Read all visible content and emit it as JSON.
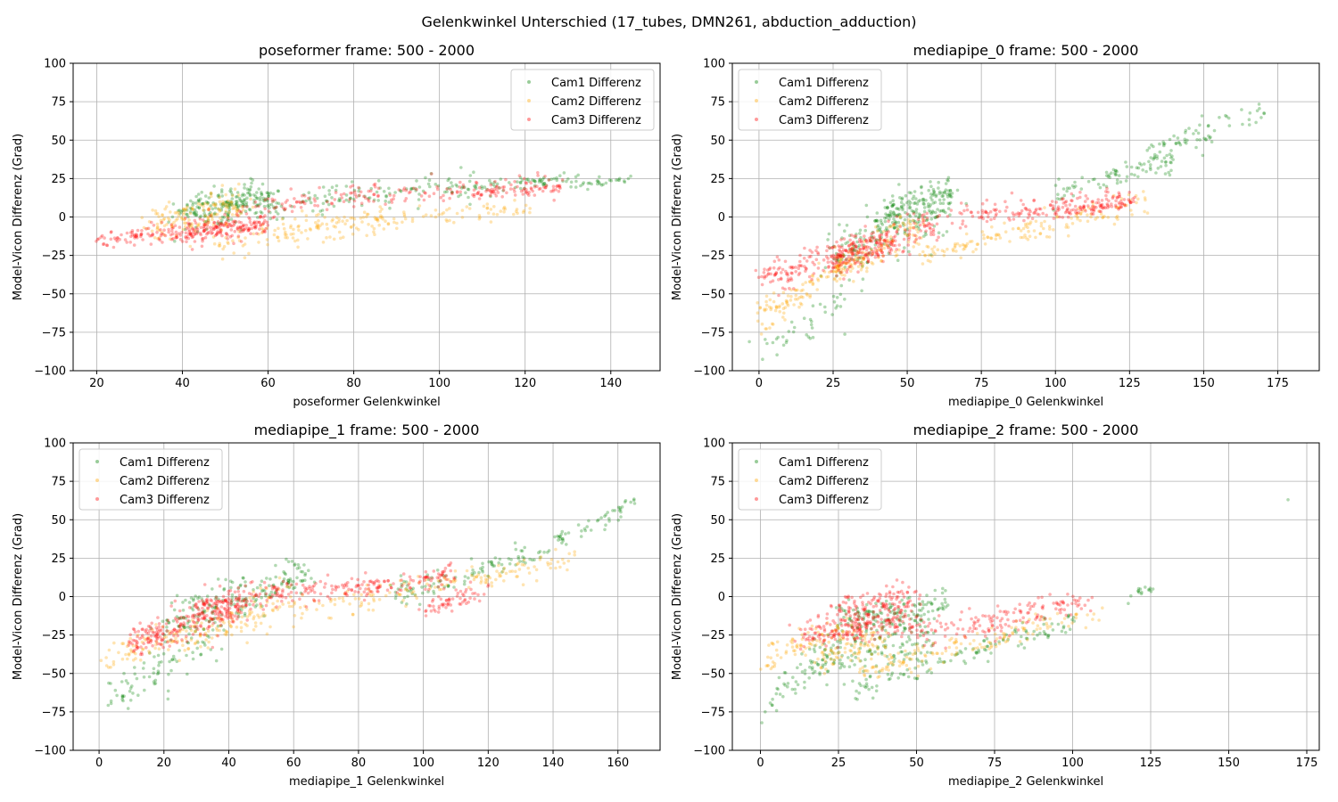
{
  "figure_title": "Gelenkwinkel Unterschied (17_tubes, DMN261, abduction_adduction)",
  "colors": {
    "cam1": "#008000",
    "cam2": "#ffa500",
    "cam3": "#ff0000"
  },
  "chart_data": [
    {
      "type": "scatter",
      "title": "poseformer frame: 500 - 2000",
      "xlabel": "poseformer Gelenkwinkel",
      "ylabel": "Model-Vicon Differenz (Grad)",
      "xlim": [
        14.5,
        151.5
      ],
      "ylim": [
        -100,
        100
      ],
      "xticks": [
        20,
        40,
        60,
        80,
        100,
        120,
        140
      ],
      "yticks": [
        -100,
        -75,
        -50,
        -25,
        0,
        25,
        50,
        75,
        100
      ],
      "grid": true,
      "legend_position": "top-right",
      "series": [
        {
          "name": "Cam1 Differenz",
          "color": "#008000",
          "segments": [
            {
              "x": [
                38,
                60
              ],
              "y": [
                0,
                15
              ],
              "spread": 6,
              "n": 180
            },
            {
              "x": [
                45,
                110
              ],
              "y": [
                5,
                20
              ],
              "spread": 5,
              "n": 160
            },
            {
              "x": [
                105,
                132
              ],
              "y": [
                18,
                26
              ],
              "spread": 2,
              "n": 60
            },
            {
              "x": [
                130,
                145
              ],
              "y": [
                20,
                25
              ],
              "spread": 1.5,
              "n": 30
            }
          ]
        },
        {
          "name": "Cam2 Differenz",
          "color": "#ffa500",
          "segments": [
            {
              "x": [
                32,
                55
              ],
              "y": [
                -5,
                8
              ],
              "spread": 6,
              "n": 150
            },
            {
              "x": [
                48,
                90
              ],
              "y": [
                -18,
                -2
              ],
              "spread": 4,
              "n": 100
            },
            {
              "x": [
                60,
                122
              ],
              "y": [
                -5,
                5
              ],
              "spread": 3,
              "n": 100
            }
          ]
        },
        {
          "name": "Cam3 Differenz",
          "color": "#ff0000",
          "segments": [
            {
              "x": [
                21,
                60
              ],
              "y": [
                -14,
                -6
              ],
              "spread": 3,
              "n": 180
            },
            {
              "x": [
                40,
                60
              ],
              "y": [
                -12,
                0
              ],
              "spread": 5,
              "n": 100
            },
            {
              "x": [
                55,
                128
              ],
              "y": [
                8,
                22
              ],
              "spread": 4,
              "n": 160
            },
            {
              "x": [
                108,
                128
              ],
              "y": [
                15,
                20
              ],
              "spread": 2,
              "n": 50
            }
          ]
        }
      ]
    },
    {
      "type": "scatter",
      "title": "mediapipe_0 frame: 500 - 2000",
      "xlabel": "mediapipe_0 Gelenkwinkel",
      "ylabel": "Model-Vicon Differenz (Grad)",
      "xlim": [
        -9,
        189
      ],
      "ylim": [
        -100,
        100
      ],
      "xticks": [
        0,
        25,
        50,
        75,
        100,
        125,
        150,
        175
      ],
      "yticks": [
        -100,
        -75,
        -50,
        -25,
        0,
        25,
        50,
        75,
        100
      ],
      "grid": true,
      "legend_position": "top-left",
      "series": [
        {
          "name": "Cam1 Differenz",
          "color": "#008000",
          "segments": [
            {
              "x": [
                0,
                30
              ],
              "y": [
                -88,
                -55
              ],
              "spread": 8,
              "n": 40
            },
            {
              "x": [
                25,
                65
              ],
              "y": [
                -25,
                10
              ],
              "spread": 9,
              "n": 200
            },
            {
              "x": [
                40,
                65
              ],
              "y": [
                0,
                18
              ],
              "spread": 5,
              "n": 100
            },
            {
              "x": [
                100,
                140
              ],
              "y": [
                15,
                38
              ],
              "spread": 4,
              "n": 80
            },
            {
              "x": [
                130,
                170
              ],
              "y": [
                40,
                68
              ],
              "spread": 4,
              "n": 70
            }
          ]
        },
        {
          "name": "Cam2 Differenz",
          "color": "#ffa500",
          "segments": [
            {
              "x": [
                0,
                35
              ],
              "y": [
                -65,
                -25
              ],
              "spread": 5,
              "n": 120
            },
            {
              "x": [
                25,
                55
              ],
              "y": [
                -35,
                -5
              ],
              "spread": 6,
              "n": 120
            },
            {
              "x": [
                55,
                130
              ],
              "y": [
                -25,
                10
              ],
              "spread": 4,
              "n": 150
            }
          ]
        },
        {
          "name": "Cam3 Differenz",
          "color": "#ff0000",
          "segments": [
            {
              "x": [
                0,
                45
              ],
              "y": [
                -40,
                -15
              ],
              "spread": 5,
              "n": 200
            },
            {
              "x": [
                25,
                60
              ],
              "y": [
                -28,
                -5
              ],
              "spread": 6,
              "n": 150
            },
            {
              "x": [
                65,
                125
              ],
              "y": [
                0,
                12
              ],
              "spread": 4,
              "n": 150
            },
            {
              "x": [
                100,
                127
              ],
              "y": [
                2,
                10
              ],
              "spread": 2,
              "n": 60
            }
          ]
        }
      ]
    },
    {
      "type": "scatter",
      "title": "mediapipe_1 frame: 500 - 2000",
      "xlabel": "mediapipe_1 Gelenkwinkel",
      "ylabel": "Model-Vicon Differenz (Grad)",
      "xlim": [
        -8,
        173
      ],
      "ylim": [
        -100,
        100
      ],
      "xticks": [
        0,
        20,
        40,
        60,
        80,
        100,
        120,
        140,
        160
      ],
      "yticks": [
        -100,
        -75,
        -50,
        -25,
        0,
        25,
        50,
        75,
        100
      ],
      "grid": true,
      "legend_position": "top-left",
      "series": [
        {
          "name": "Cam1 Differenz",
          "color": "#008000",
          "segments": [
            {
              "x": [
                4,
                35
              ],
              "y": [
                -66,
                -30
              ],
              "spread": 8,
              "n": 80
            },
            {
              "x": [
                20,
                65
              ],
              "y": [
                -20,
                15
              ],
              "spread": 8,
              "n": 200
            },
            {
              "x": [
                90,
                140
              ],
              "y": [
                0,
                30
              ],
              "spread": 4,
              "n": 100
            },
            {
              "x": [
                140,
                165
              ],
              "y": [
                35,
                60
              ],
              "spread": 3,
              "n": 50
            }
          ]
        },
        {
          "name": "Cam2 Differenz",
          "color": "#ffa500",
          "segments": [
            {
              "x": [
                1,
                25
              ],
              "y": [
                -40,
                -25
              ],
              "spread": 4,
              "n": 60
            },
            {
              "x": [
                25,
                60
              ],
              "y": [
                -30,
                0
              ],
              "spread": 7,
              "n": 120
            },
            {
              "x": [
                60,
                148
              ],
              "y": [
                -10,
                25
              ],
              "spread": 4,
              "n": 150
            }
          ]
        },
        {
          "name": "Cam3 Differenz",
          "color": "#ff0000",
          "segments": [
            {
              "x": [
                10,
                45
              ],
              "y": [
                -30,
                -5
              ],
              "spread": 6,
              "n": 250
            },
            {
              "x": [
                30,
                60
              ],
              "y": [
                -10,
                5
              ],
              "spread": 4,
              "n": 100
            },
            {
              "x": [
                60,
                110
              ],
              "y": [
                0,
                15
              ],
              "spread": 4,
              "n": 150
            },
            {
              "x": [
                100,
                120
              ],
              "y": [
                -10,
                5
              ],
              "spread": 3,
              "n": 60
            }
          ]
        }
      ]
    },
    {
      "type": "scatter",
      "title": "mediapipe_2 frame: 500 - 2000",
      "xlabel": "mediapipe_2 Gelenkwinkel",
      "ylabel": "Model-Vicon Differenz (Grad)",
      "xlim": [
        -9,
        179
      ],
      "ylim": [
        -100,
        100
      ],
      "xticks": [
        0,
        25,
        50,
        75,
        100,
        125,
        150,
        175
      ],
      "yticks": [
        -100,
        -75,
        -50,
        -25,
        0,
        25,
        50,
        75,
        100
      ],
      "grid": true,
      "legend_position": "top-left",
      "series": [
        {
          "name": "Cam1 Differenz",
          "color": "#008000",
          "segments": [
            {
              "x": [
                1,
                20
              ],
              "y": [
                -72,
                -40
              ],
              "spread": 6,
              "n": 40
            },
            {
              "x": [
                15,
                55
              ],
              "y": [
                -45,
                -25
              ],
              "spread": 7,
              "n": 150
            },
            {
              "x": [
                25,
                60
              ],
              "y": [
                -15,
                -5
              ],
              "spread": 5,
              "n": 150
            },
            {
              "x": [
                30,
                100
              ],
              "y": [
                -60,
                -15
              ],
              "spread": 4,
              "n": 120
            },
            {
              "x": [
                118,
                125
              ],
              "y": [
                0,
                5
              ],
              "spread": 2,
              "n": 15
            },
            {
              "x": [
                169,
                169
              ],
              "y": [
                63,
                63
              ],
              "spread": 0,
              "n": 1
            }
          ]
        },
        {
          "name": "Cam2 Differenz",
          "color": "#ffa500",
          "segments": [
            {
              "x": [
                0,
                30
              ],
              "y": [
                -40,
                -20
              ],
              "spread": 5,
              "n": 80
            },
            {
              "x": [
                20,
                40
              ],
              "y": [
                -40,
                -25
              ],
              "spread": 5,
              "n": 80
            },
            {
              "x": [
                30,
                110
              ],
              "y": [
                -50,
                -10
              ],
              "spread": 4,
              "n": 150
            }
          ]
        },
        {
          "name": "Cam3 Differenz",
          "color": "#ff0000",
          "segments": [
            {
              "x": [
                12,
                50
              ],
              "y": [
                -25,
                -15
              ],
              "spread": 5,
              "n": 200
            },
            {
              "x": [
                25,
                50
              ],
              "y": [
                -10,
                0
              ],
              "spread": 5,
              "n": 120
            },
            {
              "x": [
                50,
                105
              ],
              "y": [
                -25,
                -5
              ],
              "spread": 5,
              "n": 150
            }
          ]
        }
      ]
    }
  ]
}
